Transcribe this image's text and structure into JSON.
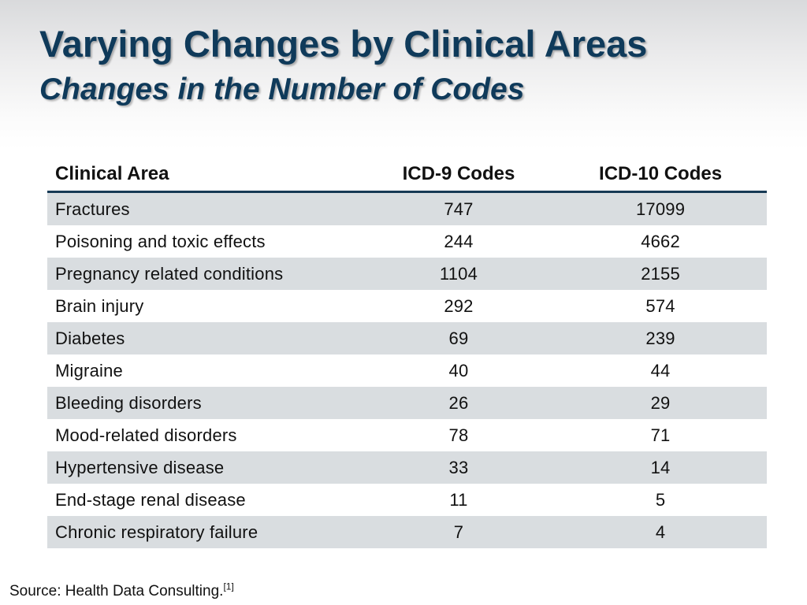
{
  "slide": {
    "title": "Varying Changes by Clinical Areas",
    "subtitle": "Changes in the Number of Codes"
  },
  "table": {
    "headers": {
      "area": "Clinical Area",
      "icd9": "ICD-9 Codes",
      "icd10": "ICD-10 Codes"
    },
    "rows": [
      {
        "area": "Fractures",
        "icd9": "747",
        "icd10": "17099"
      },
      {
        "area": "Poisoning and toxic effects",
        "icd9": "244",
        "icd10": "4662"
      },
      {
        "area": "Pregnancy related conditions",
        "icd9": "1104",
        "icd10": "2155"
      },
      {
        "area": "Brain injury",
        "icd9": "292",
        "icd10": "574"
      },
      {
        "area": "Diabetes",
        "icd9": "69",
        "icd10": "239"
      },
      {
        "area": "Migraine",
        "icd9": "40",
        "icd10": "44"
      },
      {
        "area": "Bleeding disorders",
        "icd9": "26",
        "icd10": "29"
      },
      {
        "area": "Mood-related disorders",
        "icd9": "78",
        "icd10": "71"
      },
      {
        "area": "Hypertensive disease",
        "icd9": "33",
        "icd10": "14"
      },
      {
        "area": "End-stage renal disease",
        "icd9": "11",
        "icd10": "5"
      },
      {
        "area": "Chronic respiratory failure",
        "icd9": "7",
        "icd10": "4"
      }
    ]
  },
  "footer": {
    "source_text": "Source: Health Data Consulting.",
    "reference": "[1]"
  }
}
